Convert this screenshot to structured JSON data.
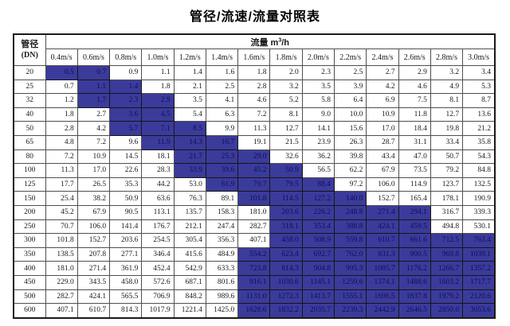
{
  "title": "管径/流速/流量对照表",
  "table": {
    "dn_header": {
      "line1": "管径",
      "line2": "(DN)"
    },
    "flow_header": {
      "label": "流量 m",
      "sup": "3",
      "suffix": "/h"
    },
    "velocity_headers": [
      "0.4m/s",
      "0.6m/s",
      "0.8m/s",
      "1.0m/s",
      "1.2m/s",
      "1.4m/s",
      "1.6m/s",
      "1.8m/s",
      "2.0m/s",
      "2.2m/s",
      "2.4m/s",
      "2.6m/s",
      "2.8m/s",
      "3.0m/s"
    ],
    "colors": {
      "highlight_bg": "#3b3b9b",
      "highlight_text": "#0e0e5c",
      "text": "#1a1a1a",
      "inner_border": "#4f4f4f",
      "outer_border": "#1a1a1a"
    },
    "rows": [
      {
        "dn": "20",
        "hl": [
          0,
          1
        ],
        "values": [
          "0.5",
          "0.7",
          "0.9",
          "1.1",
          "1.4",
          "1.6",
          "1.8",
          "2.0",
          "2.3",
          "2.5",
          "2.7",
          "2.9",
          "3.2",
          "3.4"
        ]
      },
      {
        "dn": "25",
        "hl": [
          1,
          2
        ],
        "values": [
          "0.7",
          "1.1",
          "1.4",
          "1.8",
          "2.1",
          "2.5",
          "2.8",
          "3.2",
          "3.5",
          "3.9",
          "4.2",
          "4.6",
          "4.9",
          "5.3"
        ]
      },
      {
        "dn": "32",
        "hl": [
          1,
          3
        ],
        "values": [
          "1.2",
          "1.7",
          "2.3",
          "2.9",
          "3.5",
          "4.1",
          "4.6",
          "5.2",
          "5.8",
          "6.4",
          "6.9",
          "7.5",
          "8.1",
          "8.7"
        ]
      },
      {
        "dn": "40",
        "hl": [
          2,
          3
        ],
        "values": [
          "1.8",
          "2.7",
          "3.6",
          "4.5",
          "5.4",
          "6.3",
          "7.2",
          "8.1",
          "9.0",
          "10.0",
          "10.9",
          "11.8",
          "12.7",
          "13.6"
        ]
      },
      {
        "dn": "50",
        "hl": [
          2,
          4
        ],
        "values": [
          "2.8",
          "4.2",
          "5.7",
          "7.1",
          "8.5",
          "9.9",
          "11.3",
          "12.7",
          "14.1",
          "15.6",
          "17.0",
          "18.4",
          "19.8",
          "21.2"
        ]
      },
      {
        "dn": "65",
        "hl": [
          3,
          5
        ],
        "values": [
          "4.8",
          "7.2",
          "9.6",
          "11.9",
          "14.3",
          "16.7",
          "19.1",
          "21.5",
          "23.9",
          "26.3",
          "28.7",
          "31.1",
          "33.4",
          "35.8"
        ]
      },
      {
        "dn": "80",
        "hl": [
          4,
          6
        ],
        "values": [
          "7.2",
          "10.9",
          "14.5",
          "18.1",
          "21.7",
          "25.3",
          "29.0",
          "32.6",
          "36.2",
          "39.8",
          "43.4",
          "47.0",
          "50.7",
          "54.3"
        ]
      },
      {
        "dn": "100",
        "hl": [
          4,
          7
        ],
        "values": [
          "11.3",
          "17.0",
          "22.6",
          "28.3",
          "33.9",
          "39.6",
          "45.2",
          "50.9",
          "56.5",
          "62.2",
          "67.9",
          "73.5",
          "79.2",
          "84.8"
        ]
      },
      {
        "dn": "125",
        "hl": [
          5,
          8
        ],
        "values": [
          "17.7",
          "26.5",
          "35.3",
          "44.2",
          "53.0",
          "61.9",
          "70.7",
          "79.5",
          "88.4",
          "97.2",
          "106.0",
          "114.9",
          "123.7",
          "132.5"
        ]
      },
      {
        "dn": "150",
        "hl": [
          6,
          9
        ],
        "values": [
          "25.4",
          "38.2",
          "50.9",
          "63.6",
          "76.3",
          "89.1",
          "101.8",
          "114.5",
          "127.2",
          "140.0",
          "152.7",
          "165.4",
          "178.1",
          "190.9"
        ]
      },
      {
        "dn": "200",
        "hl": [
          7,
          11
        ],
        "values": [
          "45.2",
          "67.9",
          "90.5",
          "113.1",
          "135.7",
          "158.3",
          "181.0",
          "203.6",
          "226.2",
          "248.8",
          "271.4",
          "294.1",
          "316.7",
          "339.3"
        ]
      },
      {
        "dn": "250",
        "hl": [
          7,
          11
        ],
        "values": [
          "70.7",
          "106.0",
          "141.4",
          "176.7",
          "212.1",
          "247.4",
          "282.7",
          "318.1",
          "353.4",
          "388.8",
          "424.1",
          "459.5",
          "494.8",
          "530.1"
        ]
      },
      {
        "dn": "300",
        "hl": [
          7,
          13
        ],
        "values": [
          "101.8",
          "152.7",
          "203.6",
          "254.5",
          "305.4",
          "356.3",
          "407.1",
          "458.0",
          "508.9",
          "559.8",
          "610.7",
          "661.6",
          "712.5",
          "763.4"
        ]
      },
      {
        "dn": "350",
        "hl": [
          6,
          13
        ],
        "values": [
          "138.5",
          "207.8",
          "277.1",
          "346.4",
          "415.6",
          "484.9",
          "554.2",
          "623.4",
          "692.7",
          "762.0",
          "831.3",
          "900.5",
          "969.8",
          "1039.1"
        ]
      },
      {
        "dn": "400",
        "hl": [
          6,
          13
        ],
        "values": [
          "181.0",
          "271.4",
          "361.9",
          "452.4",
          "542.9",
          "633.3",
          "723.8",
          "814.3",
          "904.8",
          "995.3",
          "1085.7",
          "1176.2",
          "1266.7",
          "1357.2"
        ]
      },
      {
        "dn": "450",
        "hl": [
          6,
          13
        ],
        "values": [
          "229.0",
          "343.5",
          "458.0",
          "572.6",
          "687.1",
          "801.6",
          "916.1",
          "1030.6",
          "1145.1",
          "1259.6",
          "1374.1",
          "1488.6",
          "1603.2",
          "1717.7"
        ]
      },
      {
        "dn": "500",
        "hl": [
          6,
          13
        ],
        "values": [
          "282.7",
          "424.1",
          "565.5",
          "706.9",
          "848.2",
          "989.6",
          "1131.0",
          "1272.3",
          "1413.7",
          "1555.1",
          "1696.5",
          "1837.8",
          "1979.2",
          "2120.6"
        ]
      },
      {
        "dn": "600",
        "hl": [
          6,
          13
        ],
        "values": [
          "407.1",
          "610.7",
          "814.3",
          "1017.9",
          "1221.4",
          "1425.0",
          "1628.6",
          "1832.2",
          "2035.7",
          "2239.3",
          "2442.9",
          "2646.5",
          "2850.0",
          "3053.6"
        ]
      }
    ]
  }
}
